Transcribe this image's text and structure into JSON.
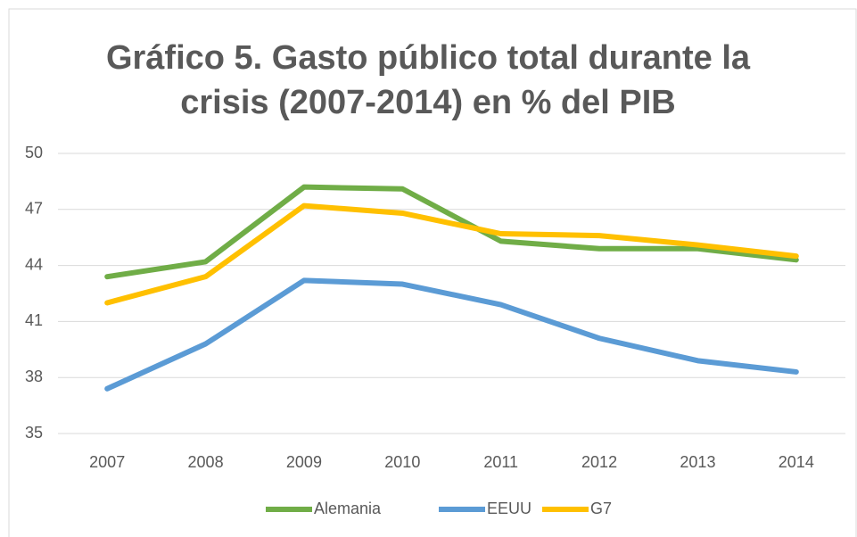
{
  "chart_data": {
    "type": "line",
    "title": "Gráfico 5. Gasto público total durante la crisis (2007-2014) en % del PIB",
    "categories": [
      "2007",
      "2008",
      "2009",
      "2010",
      "2011",
      "2012",
      "2013",
      "2014"
    ],
    "series": [
      {
        "name": "Alemania",
        "color": "#70ad47",
        "values": [
          43.4,
          44.2,
          48.2,
          48.1,
          45.3,
          44.9,
          44.9,
          44.3
        ]
      },
      {
        "name": "EEUU",
        "color": "#5b9bd5",
        "values": [
          37.4,
          39.8,
          43.2,
          43.0,
          41.9,
          40.1,
          38.9,
          38.3
        ]
      },
      {
        "name": "G7",
        "color": "#ffc000",
        "values": [
          42.0,
          43.4,
          47.2,
          46.8,
          45.7,
          45.6,
          45.1,
          44.5
        ]
      }
    ],
    "ylim": [
      35,
      50
    ],
    "yticks": [
      35,
      38,
      41,
      44,
      47,
      50
    ],
    "grid": true,
    "legend": "bottom"
  }
}
